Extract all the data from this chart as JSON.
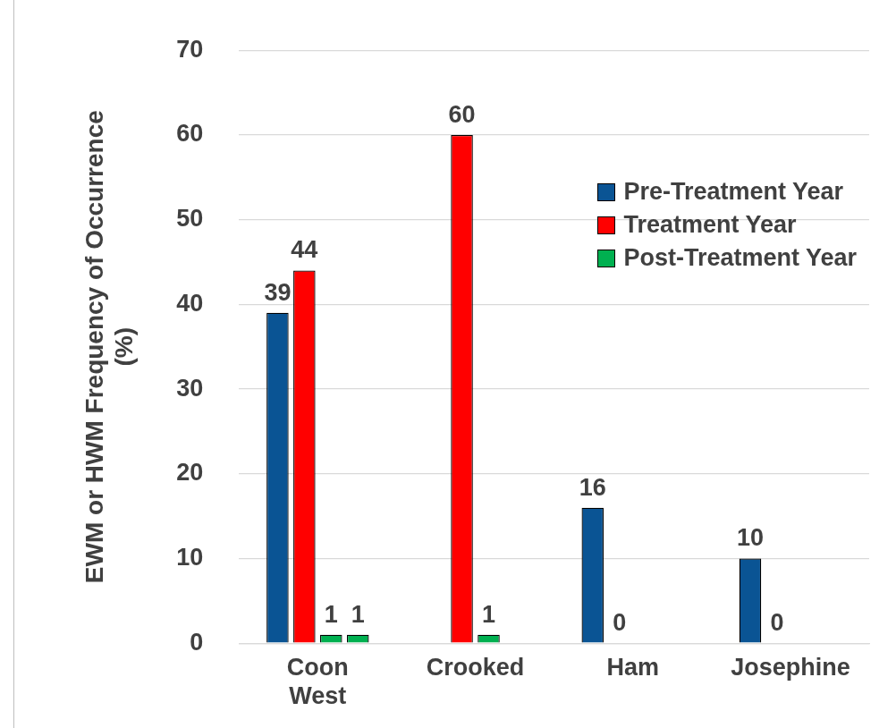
{
  "chart_data": {
    "type": "bar",
    "ylabel": "EWM or HWM Frequency of Occurrence (%)",
    "categories": [
      "Coon West",
      "Crooked",
      "Ham",
      "Josephine"
    ],
    "series": [
      {
        "name": "Pre-Treatment Year",
        "color": "#0a5494",
        "values": [
          39,
          null,
          16,
          10
        ]
      },
      {
        "name": "Treatment Year",
        "color": "#ff0000",
        "values": [
          44,
          60,
          0,
          0
        ]
      },
      {
        "name": "Post-Treatment Year",
        "color": "#00b050",
        "values": [
          1,
          1,
          null,
          null
        ]
      },
      {
        "color": "#00b050",
        "values": [
          1,
          null,
          null,
          null
        ]
      }
    ],
    "ylim": [
      0,
      70
    ],
    "yticks": [
      0,
      10,
      20,
      30,
      40,
      50,
      60,
      70
    ],
    "grid": "y",
    "legend": "top right",
    "data_labels": true
  }
}
